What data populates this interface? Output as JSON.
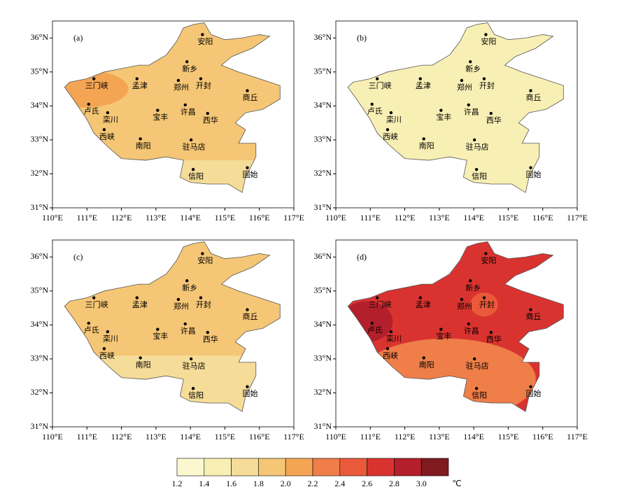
{
  "panels": [
    {
      "label": "(a)"
    },
    {
      "label": "(b)"
    },
    {
      "label": "(c)"
    },
    {
      "label": "(d)"
    }
  ],
  "xticks": [
    "110°E",
    "111°E",
    "112°E",
    "113°E",
    "114°E",
    "115°E",
    "116°E",
    "117°E"
  ],
  "yticks": [
    "31°N",
    "32°N",
    "33°N",
    "34°N",
    "35°N",
    "36°N"
  ],
  "cities": [
    "安阳",
    "新乡",
    "孟津",
    "三门峡",
    "郑州",
    "开封",
    "商丘",
    "卢氏",
    "栾川",
    "宝丰",
    "许昌",
    "西华",
    "西峡",
    "南阳",
    "驻马店",
    "信阳",
    "固始"
  ],
  "colorbar": {
    "labels": [
      "1.2",
      "1.4",
      "1.6",
      "1.8",
      "2.0",
      "2.2",
      "2.4",
      "2.6",
      "2.8",
      "3.0"
    ],
    "unit": "℃",
    "colors": [
      "#fbf8d0",
      "#f8efb4",
      "#f5dc98",
      "#f5c675",
      "#f4a553",
      "#ef7e48",
      "#ea5a3a",
      "#d93330",
      "#b31f2b",
      "#7f1a20"
    ]
  }
}
